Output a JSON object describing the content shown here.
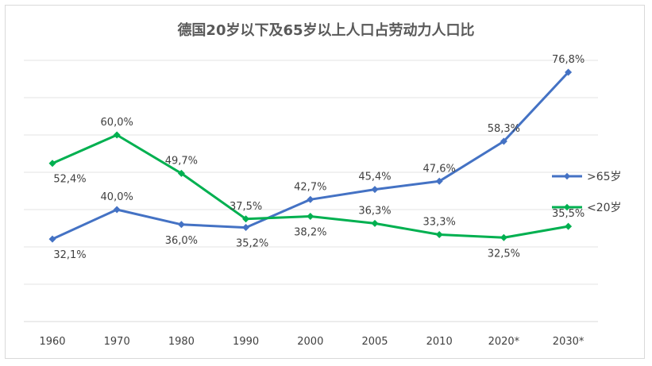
{
  "chart_data": {
    "type": "line",
    "title": "德国20岁以下及65岁以上人口占劳动力人口比",
    "categories": [
      "1960",
      "1970",
      "1980",
      "1990",
      "2000",
      "2005",
      "2010",
      "2020*",
      "2030*"
    ],
    "series": [
      {
        "name": ">65岁",
        "color": "#4472c4",
        "values": [
          32.1,
          40.0,
          36.0,
          35.2,
          42.7,
          45.4,
          47.6,
          58.3,
          76.8
        ],
        "labels": [
          "32,1%",
          "40,0%",
          "36,0%",
          "35,2%",
          "42,7%",
          "45,4%",
          "47,6%",
          "58,3%",
          "76,8%"
        ]
      },
      {
        "name": "<20岁",
        "color": "#00b050",
        "values": [
          52.4,
          60.0,
          49.7,
          37.5,
          38.2,
          36.3,
          33.3,
          32.5,
          35.5
        ],
        "labels": [
          "52,4%",
          "60,0%",
          "49,7%",
          "37,5%",
          "38,2%",
          "36,3%",
          "33,3%",
          "32,5%",
          "35,5%"
        ]
      }
    ],
    "xlabel": "",
    "ylabel": "",
    "ylim": [
      10,
      80
    ],
    "grid": true,
    "legend": "right",
    "y_tick_labels_visible": false
  }
}
